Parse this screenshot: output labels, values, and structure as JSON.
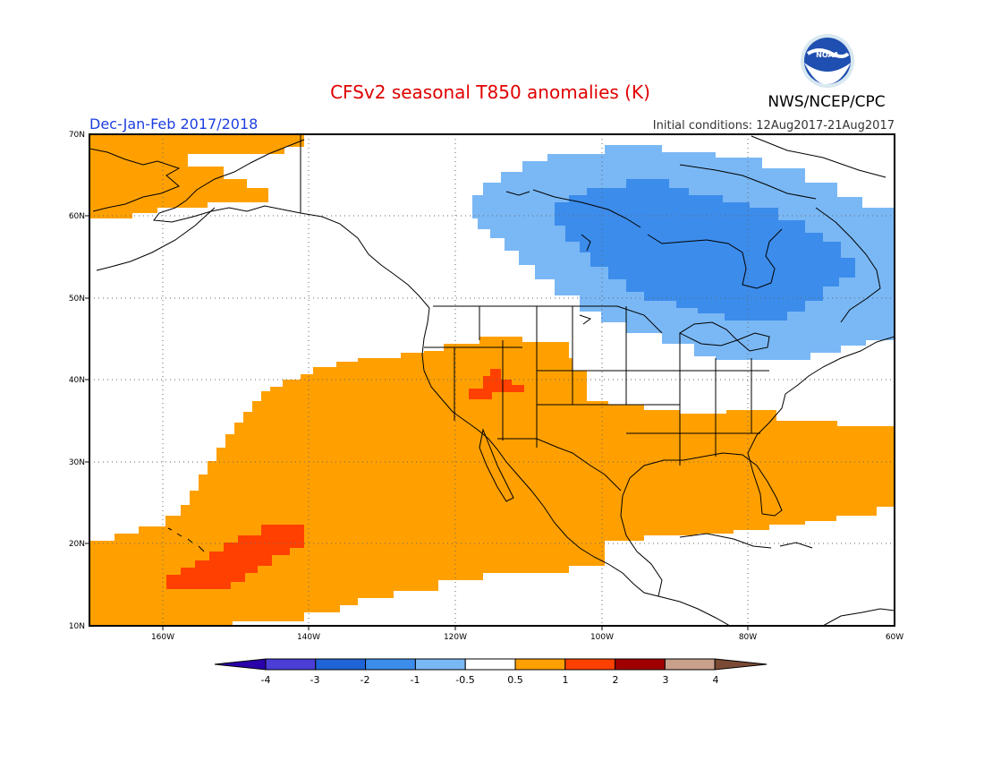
{
  "header": {
    "title": "CFSv2 seasonal T850 anomalies (K)",
    "season": "Dec-Jan-Feb 2017/2018",
    "agency": "NWS/NCEP/CPC",
    "logo_text": "NOAA",
    "init_conditions": "Initial conditions: 12Aug2017-21Aug2017"
  },
  "colors": {
    "title": "#e00000",
    "season": "#1d3ee0",
    "pos_0_5": "#ffa000",
    "pos_1": "#ff4000",
    "neg_0_5": "#7ab8f5",
    "neg_1": "#3c8ceb"
  },
  "map": {
    "lon_ticks": [
      "160W",
      "140W",
      "120W",
      "100W",
      "80W",
      "60W"
    ],
    "lat_ticks": [
      "70N",
      "60N",
      "50N",
      "40N",
      "30N",
      "20N",
      "10N"
    ]
  },
  "colorbar": {
    "labels": [
      "-4",
      "-3",
      "-2",
      "-1",
      "-0.5",
      "0.5",
      "1",
      "2",
      "3",
      "4"
    ],
    "colors": [
      "#2a00a8",
      "#4a3ed6",
      "#1f64d6",
      "#3c8ceb",
      "#7ab8f5",
      "#ffffff",
      "#ffa000",
      "#ff4000",
      "#a00000",
      "#c8a08c",
      "#7a4a35"
    ]
  }
}
